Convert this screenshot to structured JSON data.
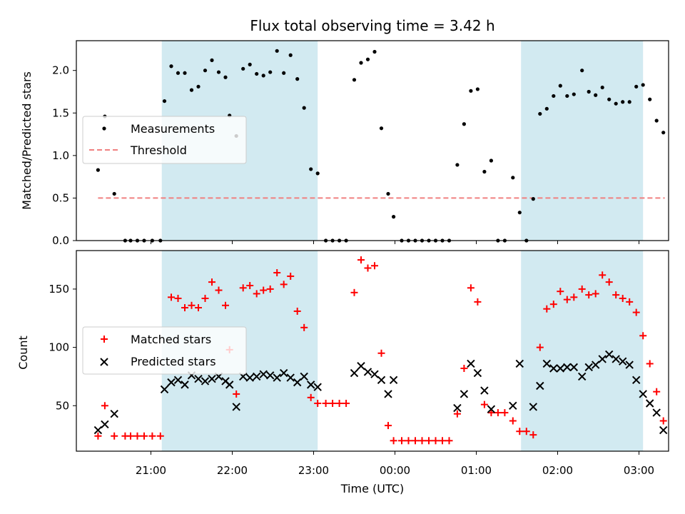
{
  "chart_data": {
    "title": "Flux total observing time = 3.42 h",
    "xlabel": "Time (UTC)",
    "x_ticks": [
      "21:00",
      "22:00",
      "23:00",
      "00:00",
      "01:00",
      "02:00",
      "03:00"
    ],
    "shaded_intervals": [
      [
        "21:08",
        "23:03"
      ],
      [
        "01:33",
        "03:03"
      ]
    ],
    "shade_color": "#add8e6",
    "panels": [
      {
        "type": "scatter",
        "ylabel": "Matched/Predicted stars",
        "ylim": [
          0,
          2.35
        ],
        "y_ticks": [
          "0.0",
          "0.5",
          "1.0",
          "1.5",
          "2.0"
        ],
        "legend_position": "center-left",
        "series": [
          {
            "name": "Measurements",
            "color": "#000000",
            "marker": "dot",
            "points": [
              [
                "20:21",
                0.83
              ],
              [
                "20:26",
                1.46
              ],
              [
                "20:33",
                0.55
              ],
              [
                "20:41",
                0.0
              ],
              [
                "20:45",
                0.0
              ],
              [
                "20:50",
                0.0
              ],
              [
                "20:55",
                0.0
              ],
              [
                "21:01",
                0.0
              ],
              [
                "21:07",
                0.0
              ],
              [
                "21:10",
                1.64
              ],
              [
                "21:15",
                2.05
              ],
              [
                "21:20",
                1.97
              ],
              [
                "21:25",
                1.97
              ],
              [
                "21:30",
                1.77
              ],
              [
                "21:35",
                1.81
              ],
              [
                "21:40",
                2.0
              ],
              [
                "21:45",
                2.12
              ],
              [
                "21:50",
                1.98
              ],
              [
                "21:55",
                1.92
              ],
              [
                "21:58",
                1.47
              ],
              [
                "22:03",
                1.23
              ],
              [
                "22:08",
                2.02
              ],
              [
                "22:13",
                2.07
              ],
              [
                "22:18",
                1.96
              ],
              [
                "22:23",
                1.94
              ],
              [
                "22:28",
                1.98
              ],
              [
                "22:33",
                2.23
              ],
              [
                "22:38",
                1.97
              ],
              [
                "22:43",
                2.18
              ],
              [
                "22:48",
                1.9
              ],
              [
                "22:53",
                1.56
              ],
              [
                "22:58",
                0.84
              ],
              [
                "23:03",
                0.79
              ],
              [
                "23:09",
                0.0
              ],
              [
                "23:14",
                0.0
              ],
              [
                "23:19",
                0.0
              ],
              [
                "23:24",
                0.0
              ],
              [
                "23:30",
                1.89
              ],
              [
                "23:35",
                2.09
              ],
              [
                "23:40",
                2.13
              ],
              [
                "23:45",
                2.22
              ],
              [
                "23:50",
                1.32
              ],
              [
                "23:55",
                0.55
              ],
              [
                "23:59",
                0.28
              ],
              [
                "00:05",
                0.0
              ],
              [
                "00:10",
                0.0
              ],
              [
                "00:15",
                0.0
              ],
              [
                "00:20",
                0.0
              ],
              [
                "00:25",
                0.0
              ],
              [
                "00:30",
                0.0
              ],
              [
                "00:35",
                0.0
              ],
              [
                "00:40",
                0.0
              ],
              [
                "00:46",
                0.89
              ],
              [
                "00:51",
                1.37
              ],
              [
                "00:56",
                1.76
              ],
              [
                "01:01",
                1.78
              ],
              [
                "01:06",
                0.81
              ],
              [
                "01:11",
                0.94
              ],
              [
                "01:16",
                0.0
              ],
              [
                "01:21",
                0.0
              ],
              [
                "01:27",
                0.74
              ],
              [
                "01:32",
                0.33
              ],
              [
                "01:37",
                0.0
              ],
              [
                "01:42",
                0.49
              ],
              [
                "01:47",
                1.49
              ],
              [
                "01:52",
                1.55
              ],
              [
                "01:57",
                1.7
              ],
              [
                "02:02",
                1.82
              ],
              [
                "02:07",
                1.7
              ],
              [
                "02:12",
                1.72
              ],
              [
                "02:18",
                2.0
              ],
              [
                "02:23",
                1.75
              ],
              [
                "02:28",
                1.71
              ],
              [
                "02:33",
                1.8
              ],
              [
                "02:38",
                1.66
              ],
              [
                "02:43",
                1.61
              ],
              [
                "02:48",
                1.63
              ],
              [
                "02:53",
                1.63
              ],
              [
                "02:58",
                1.81
              ],
              [
                "03:03",
                1.83
              ],
              [
                "03:08",
                1.66
              ],
              [
                "03:13",
                1.41
              ],
              [
                "03:18",
                1.27
              ]
            ]
          },
          {
            "name": "Threshold",
            "color": "#f08080",
            "marker": "dashed-line",
            "points": [
              [
                "20:21",
                0.5
              ],
              [
                "03:19",
                0.5
              ]
            ]
          }
        ]
      },
      {
        "type": "scatter",
        "ylabel": "Count",
        "ylim": [
          11,
          183
        ],
        "y_ticks": [
          "50",
          "100",
          "150"
        ],
        "legend_position": "center-left",
        "series": [
          {
            "name": "Matched stars",
            "color": "#ff0000",
            "marker": "plus",
            "points": [
              [
                "20:21",
                24
              ],
              [
                "20:26",
                50
              ],
              [
                "20:33",
                24
              ],
              [
                "20:41",
                24
              ],
              [
                "20:45",
                24
              ],
              [
                "20:50",
                24
              ],
              [
                "20:55",
                24
              ],
              [
                "21:01",
                24
              ],
              [
                "21:07",
                24
              ],
              [
                "21:15",
                143
              ],
              [
                "21:20",
                142
              ],
              [
                "21:25",
                134
              ],
              [
                "21:30",
                136
              ],
              [
                "21:35",
                134
              ],
              [
                "21:40",
                142
              ],
              [
                "21:45",
                156
              ],
              [
                "21:50",
                149
              ],
              [
                "21:55",
                136
              ],
              [
                "21:58",
                98
              ],
              [
                "22:03",
                60
              ],
              [
                "22:08",
                151
              ],
              [
                "22:13",
                153
              ],
              [
                "22:18",
                146
              ],
              [
                "22:23",
                149
              ],
              [
                "22:28",
                150
              ],
              [
                "22:33",
                164
              ],
              [
                "22:38",
                154
              ],
              [
                "22:43",
                161
              ],
              [
                "22:48",
                131
              ],
              [
                "22:53",
                117
              ],
              [
                "22:58",
                57
              ],
              [
                "23:03",
                52
              ],
              [
                "23:09",
                52
              ],
              [
                "23:14",
                52
              ],
              [
                "23:19",
                52
              ],
              [
                "23:24",
                52
              ],
              [
                "23:30",
                147
              ],
              [
                "23:35",
                175
              ],
              [
                "23:40",
                168
              ],
              [
                "23:45",
                170
              ],
              [
                "23:50",
                95
              ],
              [
                "23:55",
                33
              ],
              [
                "23:59",
                20
              ],
              [
                "00:05",
                20
              ],
              [
                "00:10",
                20
              ],
              [
                "00:15",
                20
              ],
              [
                "00:20",
                20
              ],
              [
                "00:25",
                20
              ],
              [
                "00:30",
                20
              ],
              [
                "00:35",
                20
              ],
              [
                "00:40",
                20
              ],
              [
                "00:46",
                43
              ],
              [
                "00:51",
                82
              ],
              [
                "00:56",
                151
              ],
              [
                "01:01",
                139
              ],
              [
                "01:06",
                51
              ],
              [
                "01:11",
                44
              ],
              [
                "01:16",
                44
              ],
              [
                "01:21",
                44
              ],
              [
                "01:27",
                37
              ],
              [
                "01:32",
                28
              ],
              [
                "01:37",
                28
              ],
              [
                "01:42",
                25
              ],
              [
                "01:47",
                100
              ],
              [
                "01:52",
                133
              ],
              [
                "01:57",
                137
              ],
              [
                "02:02",
                148
              ],
              [
                "02:07",
                141
              ],
              [
                "02:12",
                143
              ],
              [
                "02:18",
                150
              ],
              [
                "02:23",
                145
              ],
              [
                "02:28",
                146
              ],
              [
                "02:33",
                162
              ],
              [
                "02:38",
                156
              ],
              [
                "02:43",
                145
              ],
              [
                "02:48",
                142
              ],
              [
                "02:53",
                139
              ],
              [
                "02:58",
                130
              ],
              [
                "03:03",
                110
              ],
              [
                "03:08",
                86
              ],
              [
                "03:13",
                62
              ],
              [
                "03:18",
                37
              ]
            ]
          },
          {
            "name": "Predicted stars",
            "color": "#000000",
            "marker": "x",
            "points": [
              [
                "20:21",
                29
              ],
              [
                "20:26",
                34
              ],
              [
                "20:33",
                43
              ],
              [
                "21:10",
                64
              ],
              [
                "21:15",
                70
              ],
              [
                "21:20",
                72
              ],
              [
                "21:25",
                68
              ],
              [
                "21:30",
                76
              ],
              [
                "21:35",
                73
              ],
              [
                "21:40",
                71
              ],
              [
                "21:45",
                73
              ],
              [
                "21:50",
                75
              ],
              [
                "21:55",
                71
              ],
              [
                "21:58",
                68
              ],
              [
                "22:03",
                49
              ],
              [
                "22:08",
                75
              ],
              [
                "22:13",
                74
              ],
              [
                "22:18",
                75
              ],
              [
                "22:23",
                77
              ],
              [
                "22:28",
                76
              ],
              [
                "22:33",
                74
              ],
              [
                "22:38",
                78
              ],
              [
                "22:43",
                74
              ],
              [
                "22:48",
                70
              ],
              [
                "22:53",
                75
              ],
              [
                "22:58",
                68
              ],
              [
                "23:03",
                66
              ],
              [
                "23:30",
                78
              ],
              [
                "23:35",
                84
              ],
              [
                "23:40",
                79
              ],
              [
                "23:45",
                77
              ],
              [
                "23:50",
                72
              ],
              [
                "23:55",
                60
              ],
              [
                "23:59",
                72
              ],
              [
                "00:46",
                48
              ],
              [
                "00:51",
                60
              ],
              [
                "00:56",
                86
              ],
              [
                "01:01",
                78
              ],
              [
                "01:06",
                63
              ],
              [
                "01:11",
                47
              ],
              [
                "01:27",
                50
              ],
              [
                "01:32",
                86
              ],
              [
                "01:42",
                49
              ],
              [
                "01:47",
                67
              ],
              [
                "01:52",
                86
              ],
              [
                "01:57",
                82
              ],
              [
                "02:02",
                82
              ],
              [
                "02:07",
                83
              ],
              [
                "02:12",
                83
              ],
              [
                "02:18",
                75
              ],
              [
                "02:23",
                83
              ],
              [
                "02:28",
                85
              ],
              [
                "02:33",
                90
              ],
              [
                "02:38",
                94
              ],
              [
                "02:43",
                90
              ],
              [
                "02:48",
                88
              ],
              [
                "02:53",
                85
              ],
              [
                "02:58",
                72
              ],
              [
                "03:03",
                60
              ],
              [
                "03:08",
                52
              ],
              [
                "03:13",
                44
              ],
              [
                "03:18",
                29
              ]
            ]
          }
        ]
      }
    ]
  }
}
